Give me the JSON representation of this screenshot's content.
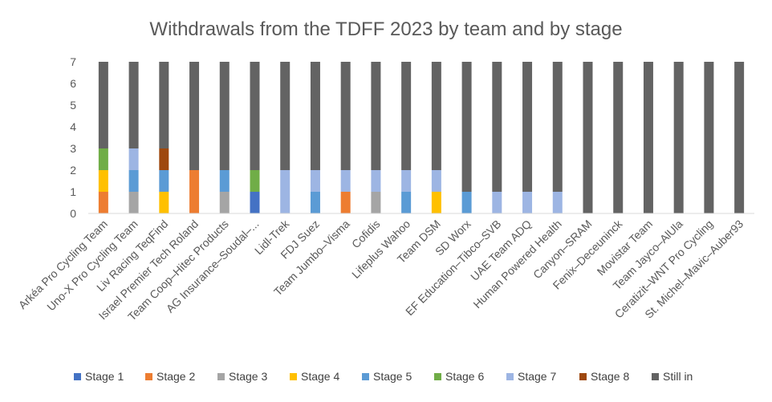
{
  "chart_data": {
    "type": "bar",
    "stacked": true,
    "title": "Withdrawals from the TDFF 2023 by team and by stage",
    "xlabel": "",
    "ylabel": "",
    "ylim": [
      0,
      7
    ],
    "yticks": [
      0,
      1,
      2,
      3,
      4,
      5,
      6,
      7
    ],
    "grid": false,
    "legend_position": "bottom",
    "categories": [
      "Arkéa Pro Cycling Team",
      "Uno-X Pro Cycling Team",
      "Liv Racing TeqFind",
      "Israel Premier Tech Roland",
      "Team Coop–Hitec Products",
      "AG Insurance–Soudal–...",
      "Lidl-Trek",
      "FDJ Suez",
      "Team Jumbo–Visma",
      "Cofidis",
      "Lifeplus Wahoo",
      "Team DSM",
      "SD Worx",
      "EF Education–Tibco–SVB",
      "UAE Team ADQ",
      "Human Powered Health",
      "Canyon–SRAM",
      "Fenix–Deceuninck",
      "Movistar Team",
      "Team Jayco–AlUla",
      "Ceratizit–WNT Pro Cycling",
      "St. Michel–Mavic–Auber93"
    ],
    "series": [
      {
        "name": "Stage 1",
        "color": "#4472C4",
        "values": [
          0,
          0,
          0,
          0,
          0,
          1,
          0,
          0,
          0,
          0,
          0,
          0,
          0,
          0,
          0,
          0,
          0,
          0,
          0,
          0,
          0,
          0
        ]
      },
      {
        "name": "Stage 2",
        "color": "#ED7D31",
        "values": [
          1,
          0,
          0,
          2,
          0,
          0,
          0,
          0,
          1,
          0,
          0,
          0,
          0,
          0,
          0,
          0,
          0,
          0,
          0,
          0,
          0,
          0
        ]
      },
      {
        "name": "Stage 3",
        "color": "#A5A5A5",
        "values": [
          0,
          1,
          0,
          0,
          1,
          0,
          0,
          0,
          0,
          1,
          0,
          0,
          0,
          0,
          0,
          0,
          0,
          0,
          0,
          0,
          0,
          0
        ]
      },
      {
        "name": "Stage 4",
        "color": "#FFC000",
        "values": [
          1,
          0,
          1,
          0,
          0,
          0,
          0,
          0,
          0,
          0,
          0,
          1,
          0,
          0,
          0,
          0,
          0,
          0,
          0,
          0,
          0,
          0
        ]
      },
      {
        "name": "Stage 5",
        "color": "#5B9BD5",
        "values": [
          0,
          1,
          1,
          0,
          1,
          0,
          0,
          1,
          0,
          0,
          1,
          0,
          1,
          0,
          0,
          0,
          0,
          0,
          0,
          0,
          0,
          0
        ]
      },
      {
        "name": "Stage 6",
        "color": "#70AD47",
        "values": [
          1,
          0,
          0,
          0,
          0,
          1,
          0,
          0,
          0,
          0,
          0,
          0,
          0,
          0,
          0,
          0,
          0,
          0,
          0,
          0,
          0,
          0
        ]
      },
      {
        "name": "Stage 7",
        "color": "#9DB5E3",
        "values": [
          0,
          1,
          0,
          0,
          0,
          0,
          2,
          1,
          1,
          1,
          1,
          1,
          0,
          1,
          1,
          1,
          0,
          0,
          0,
          0,
          0,
          0
        ]
      },
      {
        "name": "Stage 8",
        "color": "#9E480E",
        "values": [
          0,
          0,
          1,
          0,
          0,
          0,
          0,
          0,
          0,
          0,
          0,
          0,
          0,
          0,
          0,
          0,
          0,
          0,
          0,
          0,
          0,
          0
        ]
      },
      {
        "name": "Still in",
        "color": "#636363",
        "values": [
          4,
          4,
          4,
          5,
          5,
          5,
          5,
          5,
          5,
          5,
          5,
          5,
          6,
          6,
          6,
          6,
          7,
          7,
          7,
          7,
          7,
          7
        ]
      }
    ]
  }
}
